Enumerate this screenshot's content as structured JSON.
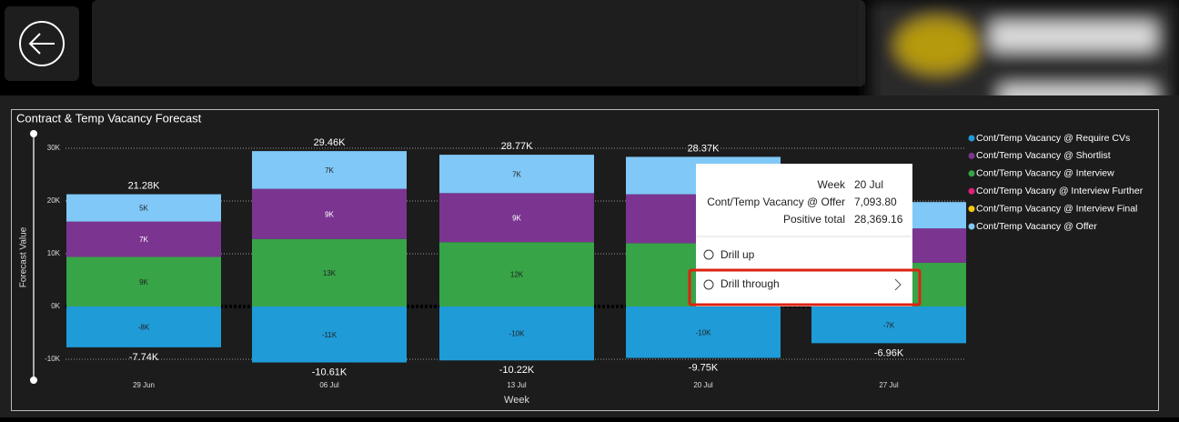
{
  "chart_data": {
    "type": "stacked-bar",
    "title": "Contract & Temp Vacancy Forecast",
    "x_label": "Week",
    "y_label": "Forecast Value",
    "categories": [
      "29 Jun",
      "06 Jul",
      "13 Jul",
      "20 Jul",
      "27 Jul"
    ],
    "series": [
      {
        "name": "Cont/Temp Vacancy @ Require CVs",
        "color": "#1f9bd7",
        "values": [
          -7740,
          -10610,
          -10220,
          -9750,
          -6960
        ],
        "value_labels": [
          "-8K",
          "-11K",
          "-10K",
          "-10K",
          "-7K"
        ]
      },
      {
        "name": "Cont/Temp Vacancy @ Shortlist",
        "color": "#7b3590",
        "values": [
          6700,
          9500,
          9300,
          9275.36,
          6500
        ],
        "value_labels": [
          "7K",
          "9K",
          "9K",
          null,
          null
        ]
      },
      {
        "name": "Cont/Temp Vacancy @ Interview",
        "color": "#37a447",
        "values": [
          9400,
          12800,
          12200,
          12000,
          8300
        ],
        "value_labels": [
          "9K",
          "13K",
          "12K",
          null,
          null
        ]
      },
      {
        "name": "Cont/Temp Vacany @ Interview Further",
        "color": "#e0207a",
        "values": [
          null,
          null,
          null,
          null,
          null
        ]
      },
      {
        "name": "Cont/Temp Vacancy @ Interview Final",
        "color": "#f2c80f",
        "values": [
          null,
          null,
          null,
          null,
          null
        ]
      },
      {
        "name": "Cont/Temp Vacancy @ Offer",
        "color": "#80c8f7",
        "values": [
          5180,
          7160,
          7270,
          7093.8,
          5000
        ],
        "value_labels": [
          "5K",
          "7K",
          "7K",
          null,
          null
        ]
      }
    ],
    "positive_total_labels": [
      "21.28K",
      "29.46K",
      "28.77K",
      "28.37K",
      null
    ],
    "negative_total_labels": [
      "-7.74K",
      "-10.61K",
      "-10.22K",
      "-9.75K",
      "-6.96K"
    ],
    "ylim": [
      -12000,
      33000
    ],
    "yticks": [
      {
        "value": -10000,
        "label": "-10K"
      },
      {
        "value": 0,
        "label": "0K"
      },
      {
        "value": 10000,
        "label": "10K"
      },
      {
        "value": 20000,
        "label": "20K"
      },
      {
        "value": 30000,
        "label": "30K"
      }
    ],
    "grid": true,
    "legend": "right"
  },
  "tooltip": {
    "rows": [
      {
        "label": "Week",
        "value": "20 Jul"
      },
      {
        "label": "Cont/Temp Vacancy @ Offer",
        "value": "7,093.80"
      },
      {
        "label": "Positive total",
        "value": "28,369.16"
      }
    ]
  },
  "menu": {
    "items": [
      "Drill up",
      "Drill through"
    ]
  }
}
